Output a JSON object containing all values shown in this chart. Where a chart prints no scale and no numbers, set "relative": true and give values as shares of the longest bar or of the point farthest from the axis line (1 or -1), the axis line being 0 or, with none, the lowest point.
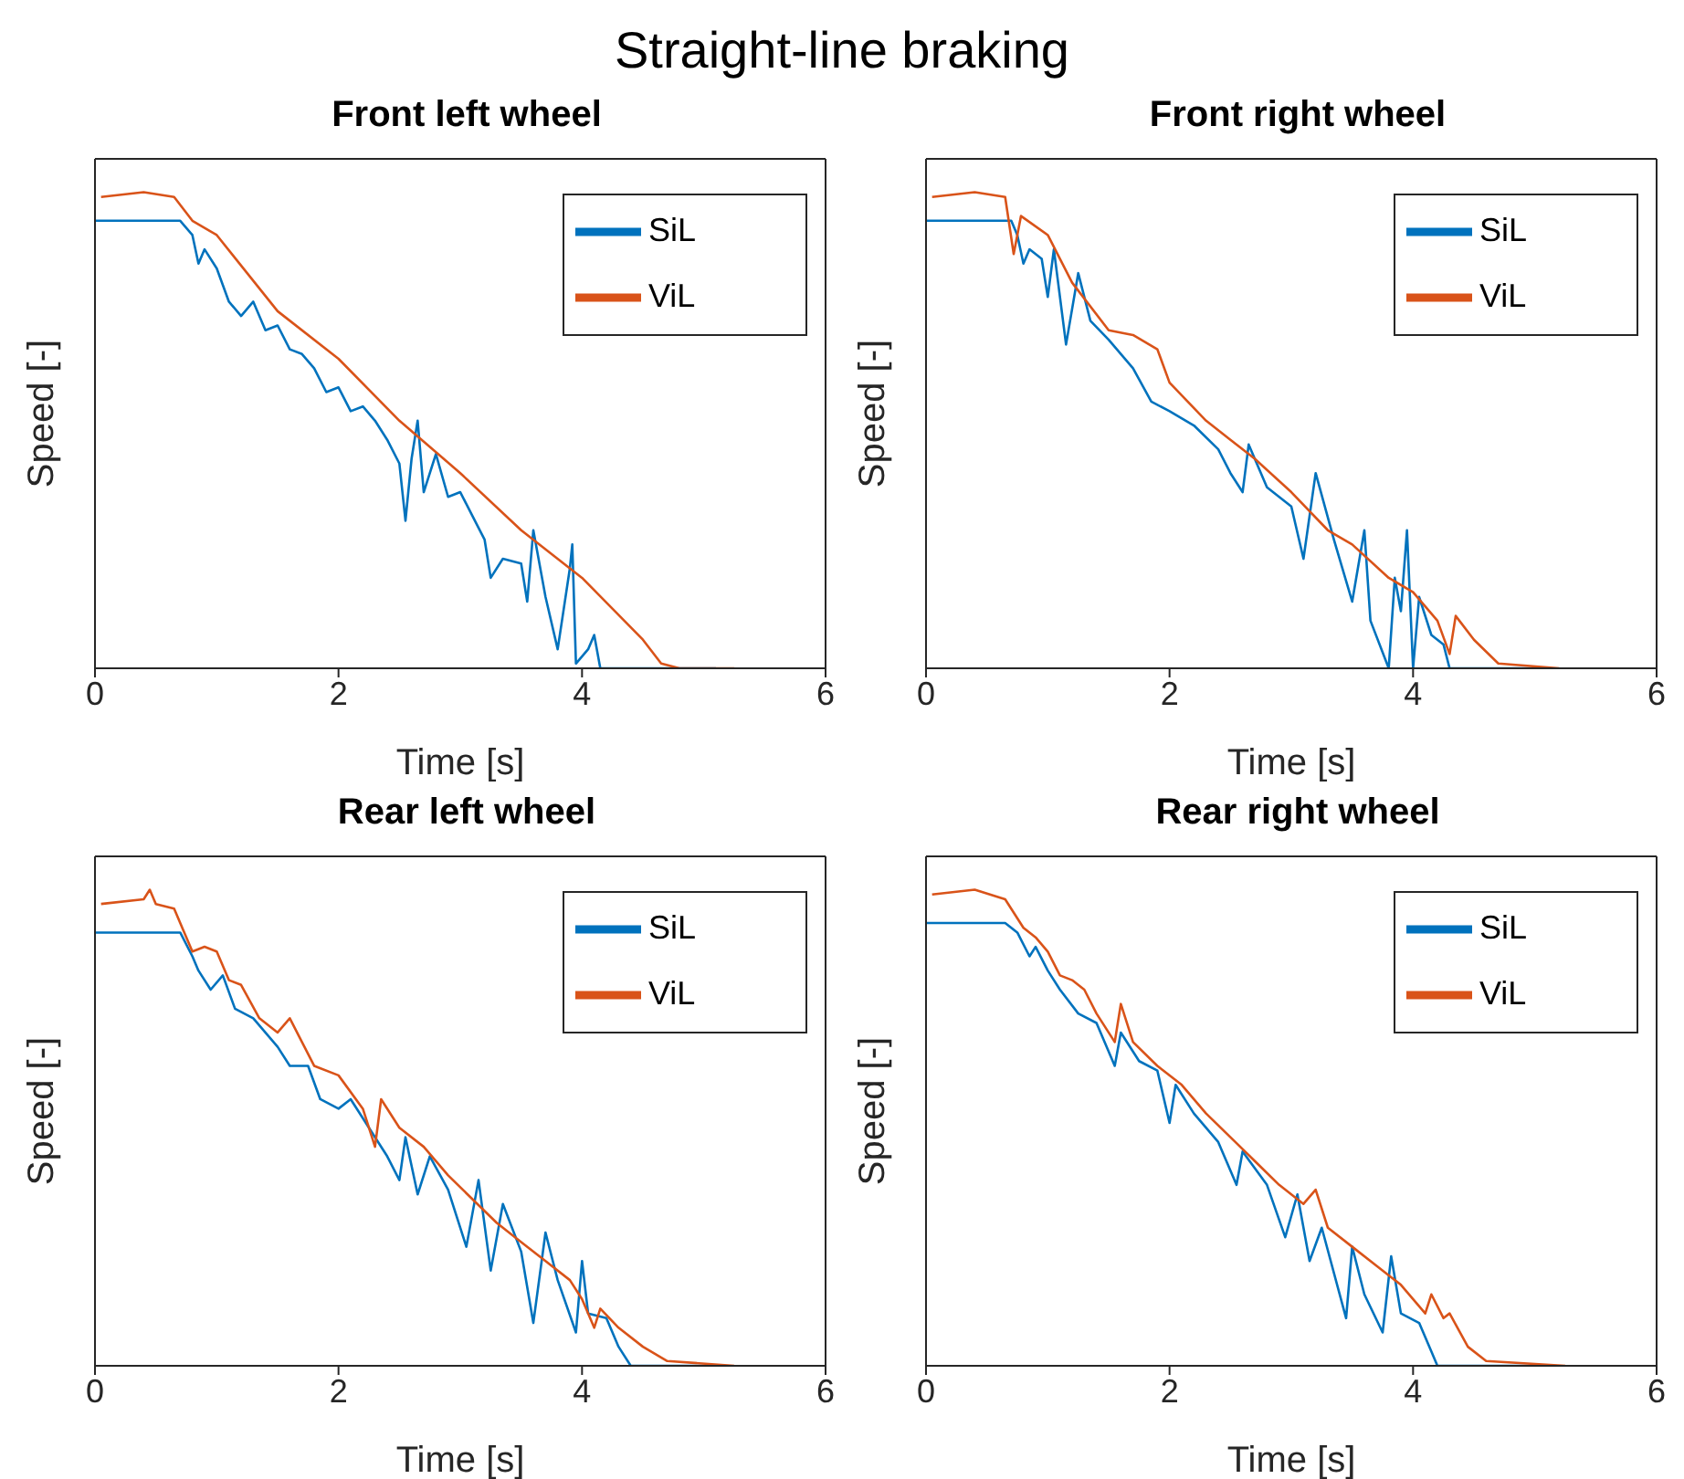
{
  "chart_data": [
    {
      "type": "line",
      "title": "Front left wheel",
      "annotations": [
        "Straight-line braking"
      ],
      "xlabel": "Time [s]",
      "ylabel": "Speed [-]",
      "xlim": [
        0,
        6
      ],
      "xticks": [
        0,
        2,
        4,
        6
      ],
      "relative": true,
      "legend": "top right",
      "series": [
        {
          "name": "SiL",
          "color": "#0072bd",
          "x": [
            0,
            0.7,
            0.8,
            0.85,
            0.9,
            1.0,
            1.1,
            1.2,
            1.3,
            1.4,
            1.5,
            1.6,
            1.7,
            1.8,
            1.9,
            2.0,
            2.1,
            2.2,
            2.3,
            2.4,
            2.5,
            2.55,
            2.6,
            2.65,
            2.7,
            2.8,
            2.9,
            3.0,
            3.1,
            3.2,
            3.25,
            3.35,
            3.5,
            3.55,
            3.6,
            3.7,
            3.8,
            3.9,
            3.92,
            3.95,
            4.05,
            4.1,
            4.15,
            5.1
          ],
          "values": [
            0.94,
            0.94,
            0.91,
            0.85,
            0.88,
            0.84,
            0.77,
            0.74,
            0.77,
            0.71,
            0.72,
            0.67,
            0.66,
            0.63,
            0.58,
            0.59,
            0.54,
            0.55,
            0.52,
            0.48,
            0.43,
            0.31,
            0.44,
            0.52,
            0.37,
            0.45,
            0.36,
            0.37,
            0.32,
            0.27,
            0.19,
            0.23,
            0.22,
            0.14,
            0.29,
            0.15,
            0.04,
            0.21,
            0.26,
            0.01,
            0.04,
            0.07,
            0,
            0
          ]
        },
        {
          "name": "ViL",
          "color": "#d95319",
          "x": [
            0.05,
            0.4,
            0.65,
            0.8,
            1.0,
            1.5,
            2.0,
            2.5,
            3.0,
            3.5,
            4.0,
            4.5,
            4.65,
            4.8,
            5.25
          ],
          "values": [
            0.99,
            1.0,
            0.99,
            0.94,
            0.91,
            0.75,
            0.65,
            0.52,
            0.41,
            0.29,
            0.19,
            0.06,
            0.01,
            0,
            0
          ]
        }
      ]
    },
    {
      "type": "line",
      "title": "Front right wheel",
      "xlabel": "Time [s]",
      "ylabel": "Speed [-]",
      "xlim": [
        0,
        6
      ],
      "xticks": [
        0,
        2,
        4,
        6
      ],
      "relative": true,
      "legend": "top right",
      "series": [
        {
          "name": "SiL",
          "color": "#0072bd",
          "x": [
            0,
            0.7,
            0.75,
            0.8,
            0.85,
            0.95,
            1.0,
            1.05,
            1.15,
            1.25,
            1.35,
            1.5,
            1.7,
            1.85,
            2.0,
            2.2,
            2.4,
            2.5,
            2.6,
            2.65,
            2.8,
            3.0,
            3.1,
            3.2,
            3.35,
            3.5,
            3.6,
            3.65,
            3.8,
            3.85,
            3.9,
            3.95,
            4.0,
            4.05,
            4.15,
            4.25,
            4.3,
            5.1
          ],
          "values": [
            0.94,
            0.94,
            0.91,
            0.85,
            0.88,
            0.86,
            0.78,
            0.88,
            0.68,
            0.83,
            0.73,
            0.69,
            0.63,
            0.56,
            0.54,
            0.51,
            0.46,
            0.41,
            0.37,
            0.47,
            0.38,
            0.34,
            0.23,
            0.41,
            0.27,
            0.14,
            0.29,
            0.1,
            0,
            0.19,
            0.12,
            0.29,
            0,
            0.15,
            0.07,
            0.05,
            0,
            0
          ]
        },
        {
          "name": "ViL",
          "color": "#d95319",
          "x": [
            0.05,
            0.4,
            0.65,
            0.72,
            0.78,
            1.0,
            1.2,
            1.5,
            1.7,
            1.9,
            2.0,
            2.3,
            2.5,
            2.7,
            3.0,
            3.3,
            3.5,
            3.8,
            4.0,
            4.2,
            4.3,
            4.35,
            4.5,
            4.7,
            5.2
          ],
          "values": [
            0.99,
            1.0,
            0.99,
            0.87,
            0.95,
            0.91,
            0.81,
            0.71,
            0.7,
            0.67,
            0.6,
            0.52,
            0.48,
            0.44,
            0.37,
            0.29,
            0.26,
            0.19,
            0.16,
            0.1,
            0.03,
            0.11,
            0.06,
            0.01,
            0
          ]
        }
      ]
    },
    {
      "type": "line",
      "title": "Rear left wheel",
      "xlabel": "Time [s]",
      "ylabel": "Speed [-]",
      "xlim": [
        0,
        6
      ],
      "xticks": [
        0,
        2,
        4,
        6
      ],
      "relative": true,
      "legend": "top right",
      "series": [
        {
          "name": "SiL",
          "color": "#0072bd",
          "x": [
            0,
            0.7,
            0.8,
            0.85,
            0.95,
            1.05,
            1.15,
            1.3,
            1.5,
            1.6,
            1.75,
            1.85,
            2.0,
            2.1,
            2.25,
            2.4,
            2.5,
            2.55,
            2.65,
            2.75,
            2.9,
            3.05,
            3.15,
            3.25,
            3.35,
            3.5,
            3.6,
            3.7,
            3.8,
            3.95,
            4.0,
            4.05,
            4.2,
            4.3,
            4.4,
            5.1
          ],
          "values": [
            0.91,
            0.91,
            0.86,
            0.83,
            0.79,
            0.82,
            0.75,
            0.73,
            0.67,
            0.63,
            0.63,
            0.56,
            0.54,
            0.56,
            0.5,
            0.44,
            0.39,
            0.48,
            0.36,
            0.44,
            0.37,
            0.25,
            0.39,
            0.2,
            0.34,
            0.24,
            0.09,
            0.28,
            0.18,
            0.07,
            0.22,
            0.11,
            0.1,
            0.04,
            0,
            0
          ]
        },
        {
          "name": "ViL",
          "color": "#d95319",
          "x": [
            0.05,
            0.4,
            0.45,
            0.5,
            0.65,
            0.8,
            0.9,
            1.0,
            1.1,
            1.2,
            1.35,
            1.5,
            1.6,
            1.8,
            2.0,
            2.2,
            2.3,
            2.35,
            2.5,
            2.7,
            2.9,
            3.1,
            3.3,
            3.5,
            3.7,
            3.9,
            4.0,
            4.1,
            4.15,
            4.3,
            4.5,
            4.7,
            5.25
          ],
          "values": [
            0.97,
            0.98,
            1.0,
            0.97,
            0.96,
            0.87,
            0.88,
            0.87,
            0.81,
            0.8,
            0.73,
            0.7,
            0.73,
            0.63,
            0.61,
            0.54,
            0.46,
            0.56,
            0.5,
            0.46,
            0.4,
            0.35,
            0.3,
            0.26,
            0.22,
            0.18,
            0.14,
            0.08,
            0.12,
            0.08,
            0.04,
            0.01,
            0
          ]
        }
      ]
    },
    {
      "type": "line",
      "title": "Rear right wheel",
      "xlabel": "Time [s]",
      "ylabel": "Speed [-]",
      "xlim": [
        0,
        6
      ],
      "xticks": [
        0,
        2,
        4,
        6
      ],
      "relative": true,
      "legend": "top right",
      "series": [
        {
          "name": "SiL",
          "color": "#0072bd",
          "x": [
            0,
            0.65,
            0.75,
            0.85,
            0.9,
            1.0,
            1.1,
            1.25,
            1.4,
            1.55,
            1.6,
            1.75,
            1.9,
            2.0,
            2.05,
            2.2,
            2.4,
            2.55,
            2.6,
            2.8,
            2.95,
            3.05,
            3.15,
            3.25,
            3.45,
            3.5,
            3.6,
            3.75,
            3.82,
            3.9,
            4.05,
            4.15,
            4.2,
            5.1
          ],
          "values": [
            0.93,
            0.93,
            0.91,
            0.86,
            0.88,
            0.83,
            0.79,
            0.74,
            0.72,
            0.63,
            0.7,
            0.64,
            0.62,
            0.51,
            0.59,
            0.53,
            0.47,
            0.38,
            0.45,
            0.38,
            0.27,
            0.36,
            0.22,
            0.29,
            0.1,
            0.25,
            0.15,
            0.07,
            0.23,
            0.11,
            0.09,
            0.03,
            0,
            0
          ]
        },
        {
          "name": "ViL",
          "color": "#d95319",
          "x": [
            0.05,
            0.4,
            0.65,
            0.8,
            0.9,
            1.0,
            1.1,
            1.2,
            1.3,
            1.4,
            1.55,
            1.6,
            1.7,
            1.9,
            2.1,
            2.3,
            2.5,
            2.7,
            2.9,
            3.1,
            3.2,
            3.3,
            3.5,
            3.7,
            3.9,
            4.1,
            4.15,
            4.25,
            4.3,
            4.45,
            4.6,
            5.25
          ],
          "values": [
            0.99,
            1.0,
            0.98,
            0.92,
            0.9,
            0.87,
            0.82,
            0.81,
            0.79,
            0.74,
            0.68,
            0.76,
            0.68,
            0.63,
            0.59,
            0.53,
            0.48,
            0.43,
            0.38,
            0.34,
            0.37,
            0.29,
            0.25,
            0.21,
            0.17,
            0.11,
            0.15,
            0.1,
            0.11,
            0.04,
            0.01,
            0
          ]
        }
      ]
    }
  ]
}
